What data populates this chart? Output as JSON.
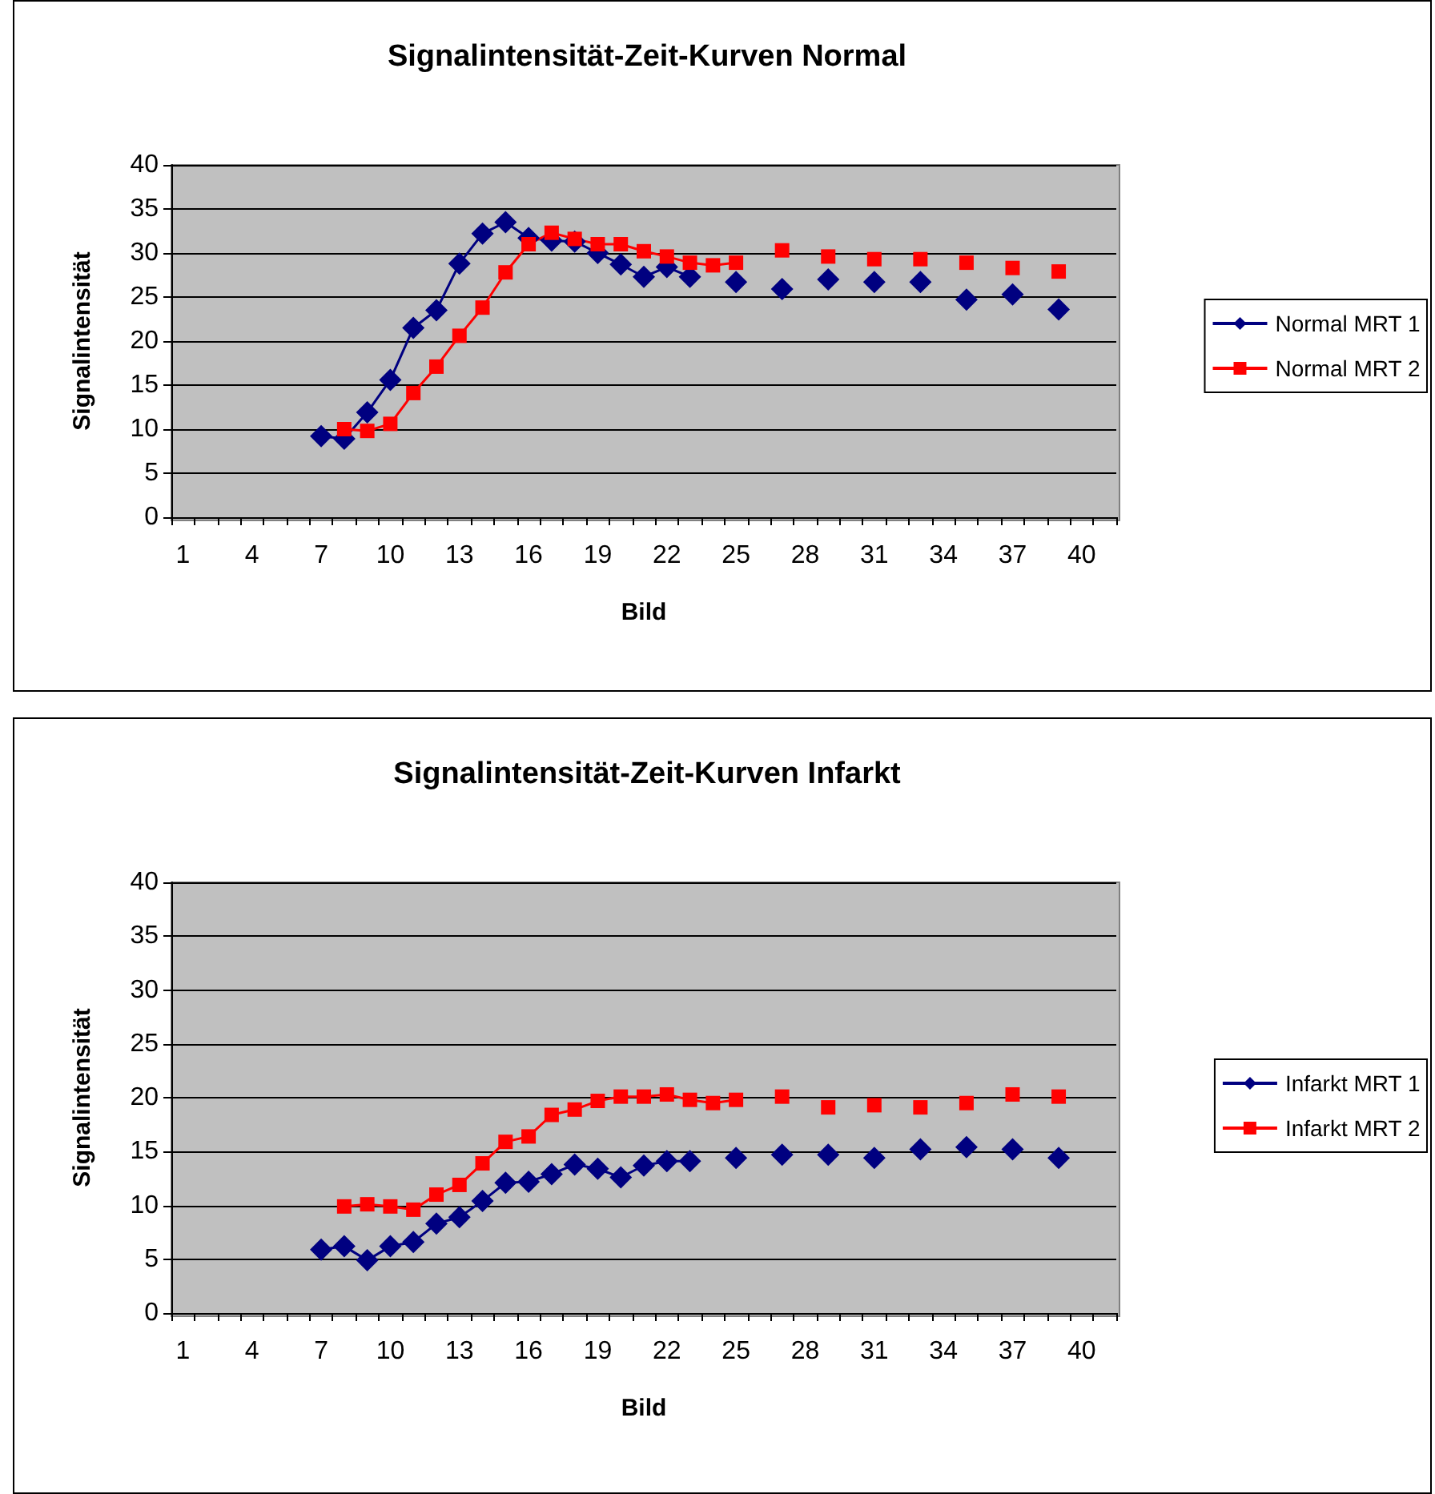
{
  "chart_data": [
    {
      "type": "line",
      "title": "Signalintensität-Zeit-Kurven Normal",
      "xlabel": "Bild",
      "ylabel": "Signalintensität",
      "categories": [
        "1",
        null,
        null,
        "4",
        null,
        null,
        "7",
        null,
        null,
        "10",
        null,
        null,
        "13",
        null,
        null,
        "16",
        null,
        null,
        "19",
        null,
        null,
        "22",
        null,
        null,
        "25",
        null,
        null,
        "28",
        null,
        null,
        "31",
        null,
        null,
        "34",
        null,
        null,
        "37",
        null,
        null,
        "40",
        null
      ],
      "series": [
        {
          "name": "Normal MRT 1",
          "color": "#000080",
          "marker": "diamond",
          "values": [
            null,
            null,
            null,
            null,
            null,
            null,
            9.2,
            8.9,
            11.9,
            15.6,
            21.5,
            23.5,
            28.8,
            32.2,
            33.5,
            31.7,
            31.4,
            31.3,
            30,
            28.7,
            27.3,
            28.4,
            27.3,
            null,
            26.7,
            null,
            25.9,
            null,
            27,
            null,
            26.7,
            null,
            26.7,
            null,
            24.7,
            null,
            25.3,
            null,
            23.6,
            null,
            null
          ]
        },
        {
          "name": "Normal MRT 2",
          "color": "#ff0000",
          "marker": "square",
          "values": [
            null,
            null,
            null,
            null,
            null,
            null,
            null,
            10,
            9.8,
            10.6,
            14.1,
            17.1,
            20.6,
            23.8,
            27.8,
            31,
            32.3,
            31.6,
            31,
            31,
            30.2,
            29.6,
            28.9,
            28.6,
            28.9,
            null,
            30.3,
            null,
            29.6,
            null,
            29.3,
            null,
            29.3,
            null,
            28.9,
            null,
            28.3,
            null,
            27.9,
            null,
            null
          ]
        }
      ],
      "ylim": [
        0,
        40
      ],
      "yticks": [
        0,
        5,
        10,
        15,
        20,
        25,
        30,
        35,
        40
      ],
      "grid": "y",
      "legend": "right"
    },
    {
      "type": "line",
      "title": "Signalintensität-Zeit-Kurven Infarkt",
      "xlabel": "Bild",
      "ylabel": "Signalintensität",
      "categories": [
        "1",
        null,
        null,
        "4",
        null,
        null,
        "7",
        null,
        null,
        "10",
        null,
        null,
        "13",
        null,
        null,
        "16",
        null,
        null,
        "19",
        null,
        null,
        "22",
        null,
        null,
        "25",
        null,
        null,
        "28",
        null,
        null,
        "31",
        null,
        null,
        "34",
        null,
        null,
        "37",
        null,
        null,
        "40",
        null
      ],
      "series": [
        {
          "name": "Infarkt MRT 1",
          "color": "#000080",
          "marker": "diamond",
          "values": [
            null,
            null,
            null,
            null,
            null,
            null,
            5.9,
            6.2,
            4.9,
            6.2,
            6.6,
            8.3,
            8.9,
            10.4,
            12.1,
            12.2,
            12.9,
            13.8,
            13.4,
            12.6,
            13.7,
            14.1,
            14.1,
            null,
            14.4,
            null,
            14.7,
            null,
            14.7,
            null,
            14.4,
            null,
            15.2,
            null,
            15.4,
            null,
            15.2,
            null,
            14.4,
            null,
            null
          ]
        },
        {
          "name": "Infarkt MRT 2",
          "color": "#ff0000",
          "marker": "square",
          "values": [
            null,
            null,
            null,
            null,
            null,
            null,
            null,
            9.9,
            10.1,
            9.9,
            9.6,
            11,
            11.9,
            13.9,
            15.9,
            16.4,
            18.4,
            18.9,
            19.7,
            20.1,
            20.1,
            20.3,
            19.8,
            19.5,
            19.8,
            null,
            20.1,
            null,
            19.1,
            null,
            19.3,
            null,
            19.1,
            null,
            19.5,
            null,
            20.3,
            null,
            20.1,
            null,
            null
          ]
        }
      ],
      "ylim": [
        0,
        40
      ],
      "yticks": [
        0,
        5,
        10,
        15,
        20,
        25,
        30,
        35,
        40
      ],
      "grid": "y",
      "legend": "right"
    }
  ]
}
